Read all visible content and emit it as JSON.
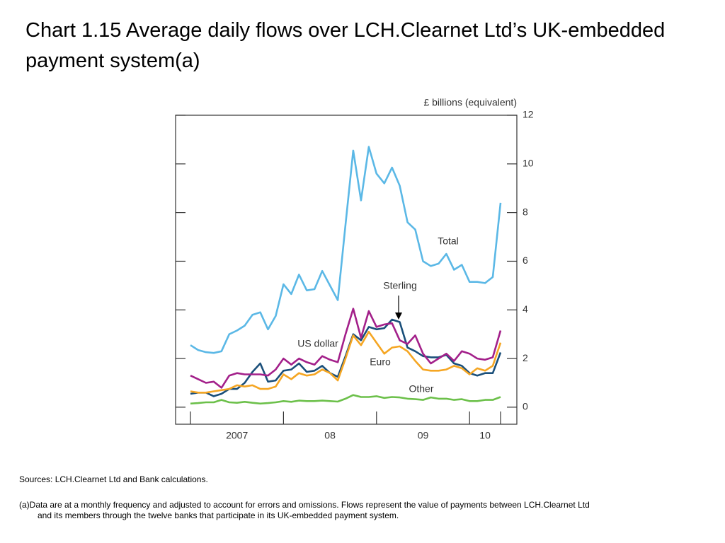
{
  "title": "Chart 1.15  Average daily flows over LCH.Clearnet Ltd’s UK-embedded payment system(a)",
  "chart_data": {
    "type": "line",
    "y_axis_label": "£ billions (equivalent)",
    "categories": [
      null,
      null,
      null,
      null,
      null,
      null,
      null,
      null,
      null,
      null,
      null,
      null,
      null,
      null,
      null,
      null,
      null,
      null,
      null,
      null,
      null,
      null,
      null,
      null,
      null,
      null,
      null,
      null,
      null,
      null,
      null,
      null,
      null,
      null,
      null,
      null,
      null,
      null,
      null,
      null,
      null
    ],
    "year_labels": [
      "2007",
      "08",
      "09",
      "10"
    ],
    "ylim": [
      -0.7,
      12
    ],
    "yticks": [
      0,
      2,
      4,
      6,
      8,
      10,
      12
    ],
    "grid": false,
    "series": [
      {
        "name": "Total",
        "color": "#5bb8e6",
        "values": [
          2.55,
          2.35,
          2.26,
          2.23,
          2.3,
          3.0,
          3.15,
          3.35,
          3.8,
          3.9,
          3.2,
          3.75,
          5.05,
          4.65,
          5.45,
          4.8,
          4.85,
          5.6,
          5.0,
          4.4,
          7.5,
          10.55,
          8.5,
          10.7,
          9.6,
          9.2,
          9.85,
          9.1,
          7.6,
          7.3,
          6.0,
          5.8,
          5.9,
          6.3,
          5.65,
          5.85,
          5.15,
          5.15,
          5.1,
          5.35,
          8.4
        ]
      },
      {
        "name": "Sterling",
        "color": "#1a4f7a",
        "values": [
          0.55,
          0.6,
          0.6,
          0.45,
          0.55,
          0.75,
          0.75,
          1.0,
          1.45,
          1.8,
          1.05,
          1.1,
          1.5,
          1.55,
          1.8,
          1.45,
          1.5,
          1.7,
          1.4,
          1.25,
          2.1,
          3.0,
          2.75,
          3.3,
          3.2,
          3.25,
          3.6,
          3.5,
          2.45,
          2.3,
          2.1,
          2.05,
          2.05,
          2.15,
          1.8,
          1.7,
          1.4,
          1.3,
          1.4,
          1.4,
          2.25
        ]
      },
      {
        "name": "US dollar",
        "color": "#a3208a",
        "values": [
          1.3,
          1.15,
          1.0,
          1.05,
          0.8,
          1.3,
          1.4,
          1.35,
          1.35,
          1.35,
          1.3,
          1.55,
          2.0,
          1.75,
          2.0,
          1.85,
          1.75,
          2.1,
          1.95,
          1.85,
          3.0,
          4.05,
          2.85,
          3.95,
          3.3,
          3.4,
          3.45,
          2.75,
          2.6,
          2.95,
          2.2,
          1.8,
          2.0,
          2.2,
          1.9,
          2.3,
          2.2,
          2.0,
          1.95,
          2.05,
          3.15
        ]
      },
      {
        "name": "Euro",
        "color": "#f5a623",
        "values": [
          0.65,
          0.6,
          0.6,
          0.65,
          0.7,
          0.75,
          0.9,
          0.85,
          0.9,
          0.75,
          0.75,
          0.85,
          1.35,
          1.15,
          1.4,
          1.3,
          1.35,
          1.55,
          1.4,
          1.1,
          2.0,
          2.95,
          2.55,
          3.1,
          2.65,
          2.2,
          2.45,
          2.5,
          2.3,
          1.9,
          1.55,
          1.5,
          1.5,
          1.55,
          1.7,
          1.6,
          1.35,
          1.6,
          1.5,
          1.7,
          2.65
        ]
      },
      {
        "name": "Other",
        "color": "#6cc04a",
        "values": [
          0.15,
          0.17,
          0.2,
          0.2,
          0.3,
          0.2,
          0.18,
          0.22,
          0.18,
          0.15,
          0.17,
          0.2,
          0.25,
          0.22,
          0.27,
          0.25,
          0.25,
          0.27,
          0.25,
          0.23,
          0.35,
          0.5,
          0.42,
          0.42,
          0.45,
          0.38,
          0.42,
          0.4,
          0.35,
          0.33,
          0.3,
          0.4,
          0.35,
          0.35,
          0.3,
          0.33,
          0.25,
          0.25,
          0.3,
          0.3,
          0.42
        ]
      }
    ]
  },
  "notes": {
    "sources": "Sources:  LCH.Clearnet Ltd and Bank calculations.",
    "footnote": "(a)Data are at a monthly frequency and adjusted to account for errors and omissions.  Flows represent the value of payments between LCH.Clearnet Ltd and its members through the twelve banks that participate in its UK-embedded payment system."
  }
}
